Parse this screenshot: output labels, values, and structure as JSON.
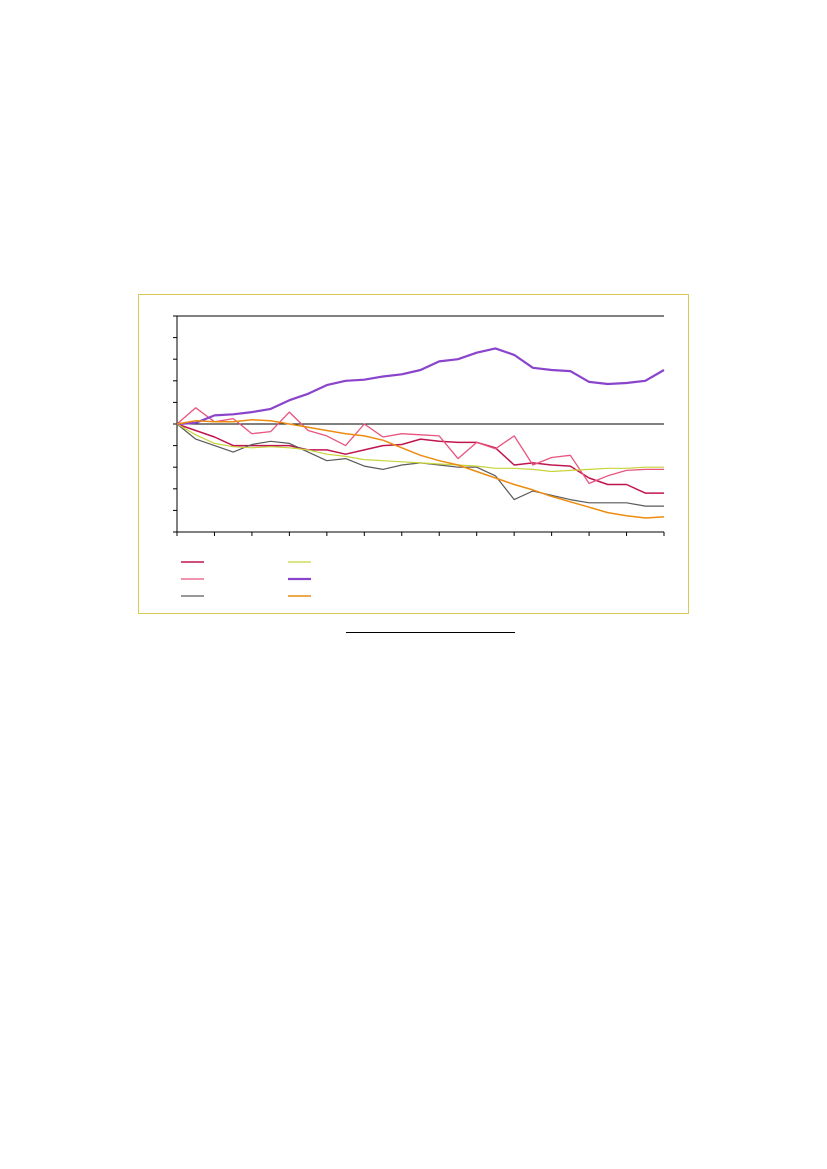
{
  "chart_data": {
    "type": "line",
    "title": "",
    "xlabel": "",
    "ylabel": "",
    "x": [
      0,
      1,
      2,
      3,
      4,
      5,
      6,
      7,
      8,
      9,
      10,
      11,
      12,
      13,
      14,
      15,
      16,
      17,
      18,
      19,
      20,
      21,
      22,
      23,
      24,
      25,
      26
    ],
    "xlim": [
      0,
      26
    ],
    "ylim": [
      -5,
      5
    ],
    "y_tick_step": 1,
    "x_tick_step": 2,
    "grid": false,
    "legend_position": "bottom-left",
    "series": [
      {
        "color": "#c0164f",
        "width": 1.5,
        "values": [
          0,
          -0.3,
          -0.6,
          -1.0,
          -1.0,
          -1.0,
          -1.0,
          -1.2,
          -1.2,
          -1.4,
          -1.2,
          -1.0,
          -0.95,
          -0.7,
          -0.8,
          -0.85,
          -0.85,
          -1.1,
          -1.9,
          -1.8,
          -1.9,
          -1.95,
          -2.5,
          -2.8,
          -2.8,
          -3.2,
          -3.2
        ]
      },
      {
        "color": "#e8557e",
        "width": 1.3,
        "values": [
          0,
          0.75,
          0.1,
          0.25,
          -0.45,
          -0.35,
          0.55,
          -0.3,
          -0.55,
          -1.0,
          0.0,
          -0.6,
          -0.45,
          -0.5,
          -0.55,
          -1.6,
          -0.85,
          -1.15,
          -0.55,
          -1.9,
          -1.55,
          -1.45,
          -2.75,
          -2.4,
          -2.15,
          -2.1,
          -2.1
        ]
      },
      {
        "color": "#5a5a5a",
        "width": 1.2,
        "values": [
          0,
          -0.7,
          -1.0,
          -1.3,
          -0.95,
          -0.8,
          -0.9,
          -1.3,
          -1.7,
          -1.6,
          -1.95,
          -2.1,
          -1.9,
          -1.8,
          -1.9,
          -2.0,
          -2.0,
          -2.4,
          -3.5,
          -3.1,
          -3.3,
          -3.5,
          -3.65,
          -3.65,
          -3.65,
          -3.8,
          -3.8
        ]
      },
      {
        "color": "#c8d43a",
        "width": 1.2,
        "values": [
          0,
          -0.5,
          -0.9,
          -1.05,
          -1.1,
          -1.05,
          -1.1,
          -1.2,
          -1.4,
          -1.5,
          -1.65,
          -1.7,
          -1.75,
          -1.8,
          -1.85,
          -1.9,
          -1.95,
          -2.05,
          -2.05,
          -2.1,
          -2.2,
          -2.15,
          -2.1,
          -2.05,
          -2.05,
          -2.0,
          -2.0
        ]
      },
      {
        "color": "#8a44cc",
        "width": 2.2,
        "values": [
          0,
          0.05,
          0.4,
          0.45,
          0.55,
          0.7,
          1.1,
          1.4,
          1.8,
          2.0,
          2.05,
          2.2,
          2.3,
          2.5,
          2.9,
          3.0,
          3.3,
          3.5,
          3.2,
          2.6,
          2.5,
          2.45,
          1.95,
          1.85,
          1.9,
          2.0,
          2.5
        ]
      },
      {
        "color": "#ec8c10",
        "width": 1.5,
        "values": [
          0,
          0.15,
          0.1,
          0.1,
          0.2,
          0.15,
          0.0,
          -0.15,
          -0.3,
          -0.45,
          -0.55,
          -0.75,
          -1.1,
          -1.45,
          -1.7,
          -1.9,
          -2.2,
          -2.5,
          -2.8,
          -3.05,
          -3.35,
          -3.6,
          -3.85,
          -4.1,
          -4.25,
          -4.35,
          -4.3
        ]
      }
    ]
  }
}
